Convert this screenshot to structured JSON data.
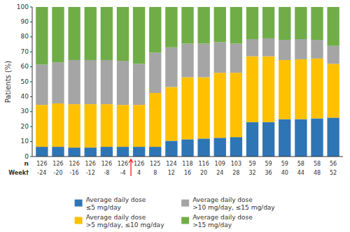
{
  "chart_data": {
    "type": "bar",
    "stacked": true,
    "grid": false,
    "legend": "bottom",
    "ylabel": "Patients (%)",
    "xlabel": "Week†",
    "categories": [
      "-24",
      "-20",
      "-16",
      "-12",
      "-8",
      "-4",
      "4",
      "8",
      "12",
      "16",
      "20",
      "24",
      "28",
      "32",
      "36",
      "40",
      "44",
      "48",
      "52"
    ],
    "n": {
      "label": "n",
      "values": [
        126,
        126,
        126,
        126,
        126,
        126,
        126,
        125,
        124,
        118,
        116,
        109,
        103,
        59,
        59,
        59,
        58,
        58,
        56
      ]
    },
    "series": [
      {
        "name": "Average daily dose\n≤5 mg/day",
        "color": "#2e75b6",
        "values": [
          6.5,
          6.5,
          6.0,
          6.0,
          6.5,
          6.5,
          6.5,
          6.5,
          10.5,
          11.5,
          12.0,
          12.5,
          13.0,
          23.0,
          23.0,
          25.0,
          25.0,
          25.5,
          26.0
        ]
      },
      {
        "name": "Average daily dose\n>5 mg/day, ≤10 mg/day",
        "color": "#ffc000",
        "values": [
          28.0,
          29.0,
          29.0,
          29.0,
          28.5,
          28.0,
          28.0,
          36.0,
          36.0,
          41.5,
          41.0,
          43.5,
          43.0,
          44.0,
          44.0,
          39.5,
          40.0,
          40.0,
          36.0
        ]
      },
      {
        "name": "Average daily dose\n>10 mg/day, ≤15 mg/day",
        "color": "#a5a5a5",
        "values": [
          27.0,
          27.5,
          29.5,
          29.5,
          29.5,
          29.5,
          27.5,
          27.0,
          26.5,
          22.5,
          22.5,
          20.5,
          19.5,
          11.5,
          12.0,
          13.5,
          13.5,
          12.5,
          12.0
        ]
      },
      {
        "name": "Average daily dose\n>15 mg/day",
        "color": "#70ad47",
        "values": [
          38.5,
          37.0,
          35.5,
          35.5,
          35.5,
          36.0,
          38.0,
          30.5,
          27.0,
          24.5,
          24.5,
          23.5,
          24.5,
          21.5,
          21.0,
          22.0,
          21.5,
          22.0,
          26.0
        ]
      }
    ],
    "annotations": [
      {
        "type": "arrow",
        "between": [
          "-4",
          "4"
        ],
        "color": "red"
      }
    ],
    "ylim": [
      0,
      100
    ],
    "yticks": [
      0,
      10,
      20,
      30,
      40,
      50,
      60,
      70,
      80,
      90,
      100
    ]
  }
}
